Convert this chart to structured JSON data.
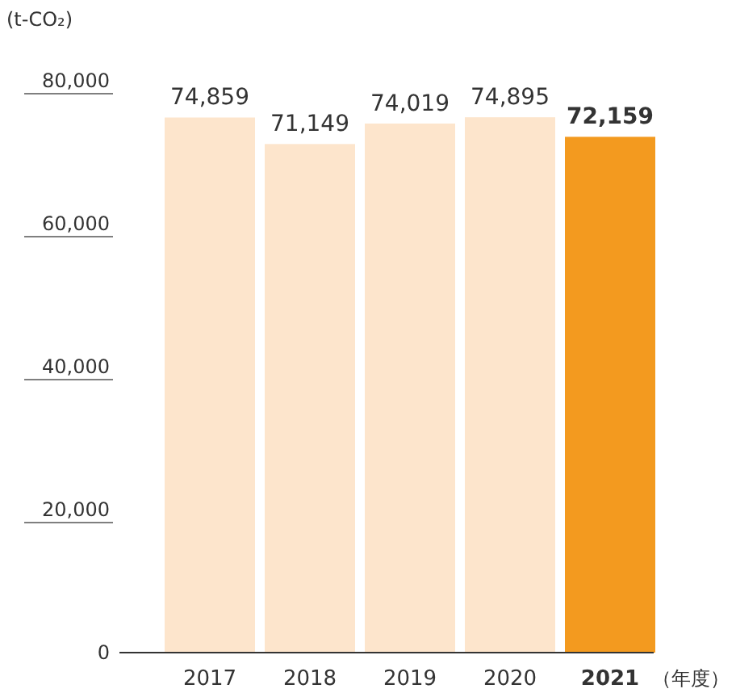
{
  "chart_data": {
    "type": "bar",
    "ylabel": "(t-CO₂)",
    "xlabel": "（年度）",
    "categories": [
      "2017",
      "2018",
      "2019",
      "2020",
      "2021"
    ],
    "values": [
      74859,
      71149,
      74019,
      74895,
      72159
    ],
    "colors": [
      "#fde5cc",
      "#fde5cc",
      "#fde5cc",
      "#fde5cc",
      "#f39a1f"
    ],
    "ylim": [
      0,
      80000
    ],
    "yticks": [
      {
        "value": 0,
        "label": "0"
      },
      {
        "value": 20000,
        "label": "20,000"
      },
      {
        "value": 40000,
        "label": "40,000"
      },
      {
        "value": 60000,
        "label": "60,000"
      },
      {
        "value": 80000,
        "label": "80,000"
      }
    ],
    "value_labels": [
      "74,859",
      "71,149",
      "74,019",
      "74,895",
      "72,159"
    ]
  }
}
